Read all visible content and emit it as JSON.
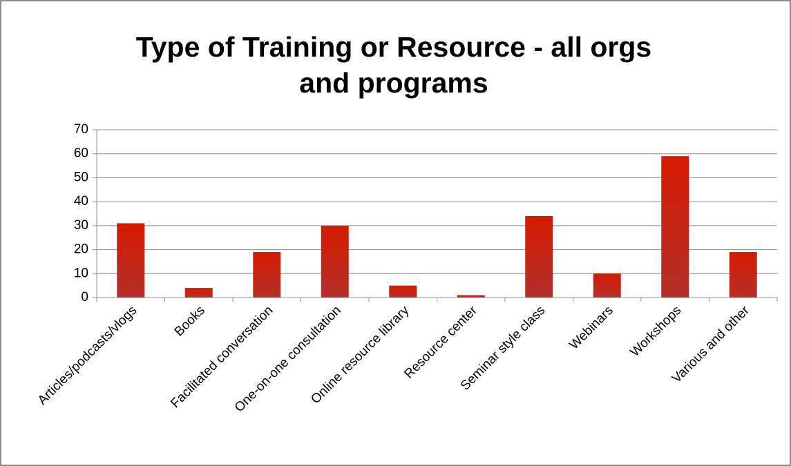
{
  "chart_data": {
    "type": "bar",
    "title": "Type of Training or Resource - all orgs and programs",
    "categories": [
      "Articles/podcasts/vlogs",
      "Books",
      "Facilitated conversation",
      "One-on-one consultation",
      "Online resource library",
      "Resource center",
      "Seminar style class",
      "Webinars",
      "Workshops",
      "Various and other"
    ],
    "values": [
      31,
      4,
      19,
      30,
      5,
      1,
      34,
      10,
      59,
      19
    ],
    "color": "#c41a0a",
    "ylim": [
      0,
      70
    ],
    "yticks": [
      0,
      10,
      20,
      30,
      40,
      50,
      60,
      70
    ],
    "grid": true
  }
}
